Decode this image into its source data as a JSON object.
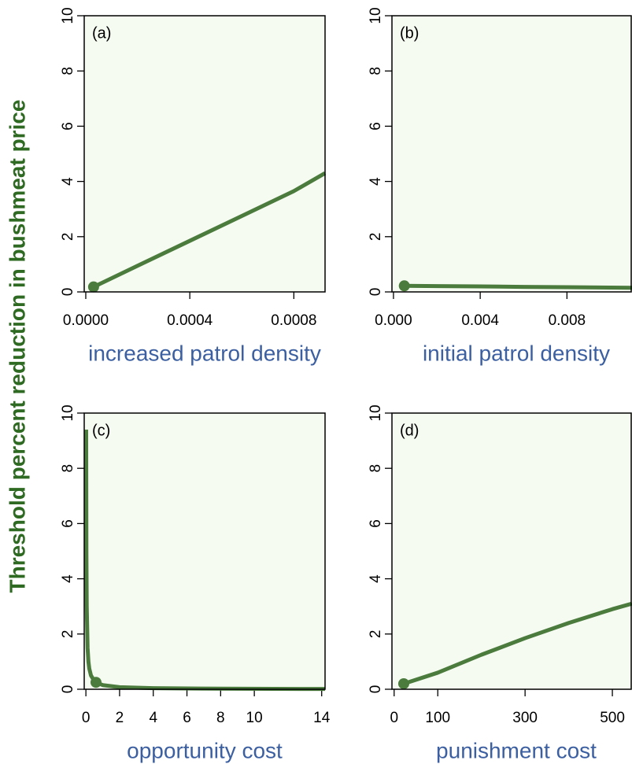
{
  "shared_ylabel": "Threshold percent reduction in bushmeat price",
  "chart_data": [
    {
      "type": "line",
      "annotation": "(a)",
      "xlabel": "increased patrol density",
      "color": "#4b7b3d",
      "x": [
        3e-05,
        0.0002,
        0.0004,
        0.0006,
        0.0008,
        0.00092
      ],
      "values": [
        0.18,
        0.95,
        1.85,
        2.75,
        3.65,
        4.3
      ],
      "highlight": {
        "x": 3e-05,
        "y": 0.18
      },
      "xlim": [
        -6e-06,
        0.00092
      ],
      "ylim": [
        0,
        10
      ],
      "xticks": [
        {
          "value": 0,
          "label": "0.0000"
        },
        {
          "value": 0.0004,
          "label": "0.0004"
        },
        {
          "value": 0.0008,
          "label": "0.0008"
        }
      ],
      "yticks": [
        0,
        2,
        4,
        6,
        8,
        10
      ]
    },
    {
      "type": "line",
      "annotation": "(b)",
      "xlabel": "initial patrol density",
      "color": "#4b7b3d",
      "x": [
        0.0005,
        0.002,
        0.004,
        0.006,
        0.008,
        0.011
      ],
      "values": [
        0.22,
        0.21,
        0.2,
        0.18,
        0.17,
        0.15
      ],
      "highlight": {
        "x": 0.0005,
        "y": 0.22
      },
      "xlim": [
        -7e-05,
        0.011
      ],
      "ylim": [
        0,
        10
      ],
      "xticks": [
        {
          "value": 0,
          "label": "0.000"
        },
        {
          "value": 0.004,
          "label": "0.004"
        },
        {
          "value": 0.008,
          "label": "0.008"
        }
      ],
      "yticks": [
        0,
        2,
        4,
        6,
        8,
        10
      ]
    },
    {
      "type": "line",
      "annotation": "(c)",
      "xlabel": "opportunity cost",
      "color": "#4b7b3d",
      "x": [
        0.016,
        0.03,
        0.05,
        0.1,
        0.15,
        0.2,
        0.3,
        0.5,
        0.6,
        1,
        2,
        4,
        8,
        14.2
      ],
      "values": [
        9.4,
        5,
        3,
        1.5,
        1.0,
        0.75,
        0.5,
        0.3,
        0.25,
        0.15,
        0.075,
        0.04,
        0.02,
        0.01
      ],
      "highlight": {
        "x": 0.6,
        "y": 0.25
      },
      "xlim": [
        -0.1,
        14.2
      ],
      "ylim": [
        0,
        10
      ],
      "xticks": [
        0,
        2,
        4,
        6,
        8,
        10,
        14
      ],
      "yticks": [
        0,
        2,
        4,
        6,
        8,
        10
      ]
    },
    {
      "type": "line",
      "annotation": "(d)",
      "xlabel": "punishment cost",
      "color": "#4b7b3d",
      "x": [
        22,
        100,
        200,
        300,
        400,
        500,
        545
      ],
      "values": [
        0.2,
        0.6,
        1.25,
        1.85,
        2.4,
        2.9,
        3.1
      ],
      "highlight": {
        "x": 22,
        "y": 0.2
      },
      "xlim": [
        -5,
        545
      ],
      "ylim": [
        0,
        10
      ],
      "xticks": [
        0,
        100,
        300,
        500
      ],
      "yticks": [
        0,
        2,
        4,
        6,
        8,
        10
      ]
    }
  ]
}
